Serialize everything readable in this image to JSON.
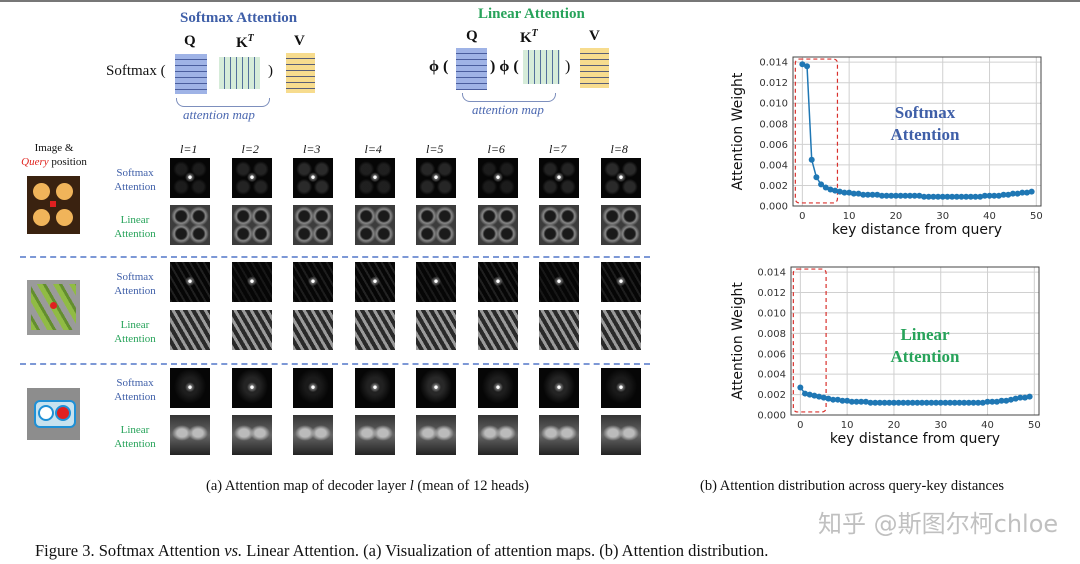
{
  "diagram": {
    "softmax": {
      "title": "Softmax Attention",
      "prefix": "Softmax (",
      "close": ")",
      "q": "Q",
      "k": "K",
      "k_sup": "T",
      "v": "V",
      "brace_label": "attention map"
    },
    "linear": {
      "title": "Linear Attention",
      "phi": "ϕ",
      "open": "(",
      "close": ")",
      "q": "Q",
      "k": "K",
      "k_sup": "T",
      "v": "V",
      "brace_label": "attention map"
    }
  },
  "grid": {
    "header_line1": "Image &",
    "header_query": "Query",
    "header_rest": " position",
    "columns": [
      "l=1",
      "l=2",
      "l=3",
      "l=4",
      "l=5",
      "l=6",
      "l=7",
      "l=8"
    ],
    "row_labels": {
      "softmax": [
        "Softmax",
        "Attention"
      ],
      "linear": [
        "Linear",
        "Attention"
      ]
    },
    "groups": 3
  },
  "subcaptions": {
    "a_pre": "(a) Attention map of decoder layer ",
    "a_var": "l",
    "a_post": " (mean of 12 heads)",
    "b": "(b) Attention distribution across query-key distances"
  },
  "caption": {
    "p1": "Figure 3. Softmax Attention ",
    "vs": "vs.",
    "p2": " Linear Attention. (a) Visualization of attention maps. (b) Attention distribution."
  },
  "watermark": "知乎 @斯图尔柯chloe",
  "chart_data": [
    {
      "type": "line",
      "annotation": [
        "Softmax",
        "Attention"
      ],
      "annotation_color": "#3f5fa8",
      "xlabel": "key distance from query",
      "ylabel": "Attention Weight",
      "xlim": [
        -2,
        51
      ],
      "ylim": [
        0,
        0.0145
      ],
      "xticks": [
        0,
        10,
        20,
        30,
        40,
        50
      ],
      "yticks": [
        "0.000",
        "0.002",
        "0.004",
        "0.006",
        "0.008",
        "0.010",
        "0.012",
        "0.014"
      ],
      "grid": true,
      "color": "#1f77b4",
      "highlight_box_x": [
        -1.5,
        7.5
      ],
      "values": [
        0.0138,
        0.0136,
        0.0045,
        0.0028,
        0.0021,
        0.0018,
        0.0016,
        0.0015,
        0.0014,
        0.0013,
        0.0013,
        0.0012,
        0.0012,
        0.0011,
        0.0011,
        0.0011,
        0.0011,
        0.001,
        0.001,
        0.001,
        0.001,
        0.001,
        0.001,
        0.001,
        0.001,
        0.001,
        0.0009,
        0.0009,
        0.0009,
        0.0009,
        0.0009,
        0.0009,
        0.0009,
        0.0009,
        0.0009,
        0.0009,
        0.0009,
        0.0009,
        0.0009,
        0.001,
        0.001,
        0.001,
        0.001,
        0.0011,
        0.0011,
        0.0012,
        0.0012,
        0.0013,
        0.0013,
        0.0014
      ]
    },
    {
      "type": "line",
      "annotation": [
        "Linear",
        "Attention"
      ],
      "annotation_color": "#27a35a",
      "xlabel": "key distance from query",
      "ylabel": "Attention Weight",
      "xlim": [
        -2,
        51
      ],
      "ylim": [
        0,
        0.0145
      ],
      "xticks": [
        0,
        10,
        20,
        30,
        40,
        50
      ],
      "yticks": [
        "0.000",
        "0.002",
        "0.004",
        "0.006",
        "0.008",
        "0.010",
        "0.012",
        "0.014"
      ],
      "grid": true,
      "color": "#1f77b4",
      "highlight_box_x": [
        -1.5,
        5.5
      ],
      "values": [
        0.0027,
        0.0021,
        0.002,
        0.0019,
        0.0018,
        0.0017,
        0.0016,
        0.0015,
        0.0015,
        0.0014,
        0.0014,
        0.0013,
        0.0013,
        0.0013,
        0.0013,
        0.0012,
        0.0012,
        0.0012,
        0.0012,
        0.0012,
        0.0012,
        0.0012,
        0.0012,
        0.0012,
        0.0012,
        0.0012,
        0.0012,
        0.0012,
        0.0012,
        0.0012,
        0.0012,
        0.0012,
        0.0012,
        0.0012,
        0.0012,
        0.0012,
        0.0012,
        0.0012,
        0.0012,
        0.0012,
        0.0013,
        0.0013,
        0.0013,
        0.0014,
        0.0014,
        0.0015,
        0.0016,
        0.0017,
        0.0017,
        0.0018
      ]
    }
  ]
}
